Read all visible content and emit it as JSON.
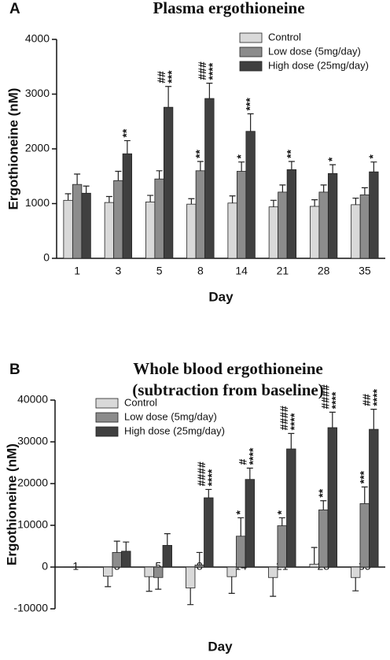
{
  "chart_data": [
    {
      "type": "bar",
      "panel_label": "A",
      "title": [
        "Plasma ergothioneine"
      ],
      "xlabel": "Day",
      "ylabel": "Ergothioneine (nM)",
      "categories": [
        "1",
        "3",
        "5",
        "8",
        "14",
        "21",
        "28",
        "35"
      ],
      "ylim": [
        0,
        4000
      ],
      "yticks": [
        0,
        1000,
        2000,
        3000,
        4000
      ],
      "legend": "upper right",
      "series": [
        {
          "name": "Control",
          "color": "#d9d9d9",
          "values": [
            1060,
            1020,
            1030,
            990,
            1010,
            940,
            950,
            980
          ],
          "errors": [
            120,
            110,
            120,
            100,
            130,
            120,
            120,
            120
          ],
          "stars": [
            null,
            null,
            null,
            null,
            null,
            null,
            null,
            null
          ],
          "hashes": [
            null,
            null,
            null,
            null,
            null,
            null,
            null,
            null
          ]
        },
        {
          "name": "Low dose (5mg/day)",
          "color": "#8c8c8c",
          "values": [
            1350,
            1420,
            1450,
            1600,
            1590,
            1210,
            1210,
            1160
          ],
          "errors": [
            190,
            170,
            150,
            170,
            170,
            130,
            130,
            130
          ],
          "stars": [
            null,
            null,
            null,
            "**",
            "*",
            null,
            null,
            null
          ],
          "hashes": [
            null,
            null,
            null,
            null,
            null,
            null,
            null,
            null
          ]
        },
        {
          "name": "High dose (25mg/day)",
          "color": "#404040",
          "values": [
            1190,
            1910,
            2760,
            2920,
            2320,
            1620,
            1550,
            1580
          ],
          "errors": [
            130,
            240,
            380,
            280,
            320,
            150,
            160,
            180
          ],
          "stars": [
            null,
            "**",
            "***",
            "****",
            "***",
            "**",
            "*",
            "*"
          ],
          "hashes": [
            null,
            null,
            "##",
            "###",
            null,
            null,
            null,
            null
          ]
        }
      ]
    },
    {
      "type": "bar",
      "panel_label": "B",
      "title": [
        "Whole blood ergothioneine",
        "(subtraction from baseline)"
      ],
      "xlabel": "Day",
      "ylabel": "Ergothioneine (nM)",
      "categories": [
        "1",
        "3",
        "5",
        "8",
        "14",
        "21",
        "28",
        "35"
      ],
      "ylim": [
        -10000,
        40000
      ],
      "yticks": [
        -10000,
        0,
        10000,
        20000,
        30000,
        40000
      ],
      "legend": "upper left",
      "series": [
        {
          "name": "Control",
          "color": "#d9d9d9",
          "values": [
            0,
            -2200,
            -2300,
            -5000,
            -2300,
            -2500,
            700,
            -2500
          ],
          "errors": [
            0,
            2500,
            3500,
            4000,
            4000,
            4500,
            4000,
            3200
          ],
          "stars": [
            null,
            null,
            null,
            null,
            null,
            null,
            null,
            null
          ],
          "hashes": [
            null,
            null,
            null,
            null,
            null,
            null,
            null,
            null
          ]
        },
        {
          "name": "Low  dose (5mg/day)",
          "color": "#8c8c8c",
          "values": [
            0,
            3500,
            -2500,
            500,
            7400,
            9900,
            13700,
            15200
          ],
          "errors": [
            0,
            2700,
            2800,
            3000,
            4400,
            1900,
            2200,
            4000
          ],
          "stars": [
            null,
            null,
            null,
            null,
            "*",
            "*",
            "**",
            "***"
          ],
          "hashes": [
            null,
            null,
            null,
            null,
            null,
            null,
            null,
            null
          ]
        },
        {
          "name": "High dose (25mg/day)",
          "color": "#404040",
          "values": [
            0,
            3800,
            5200,
            16600,
            21000,
            28300,
            33400,
            33000
          ],
          "errors": [
            0,
            2200,
            2800,
            2000,
            2700,
            3700,
            3700,
            4800
          ],
          "stars": [
            null,
            null,
            null,
            "****",
            "****",
            "****",
            "****",
            "****"
          ],
          "hashes": [
            null,
            null,
            null,
            "####",
            "#",
            "####",
            "####",
            "##"
          ]
        }
      ]
    }
  ]
}
